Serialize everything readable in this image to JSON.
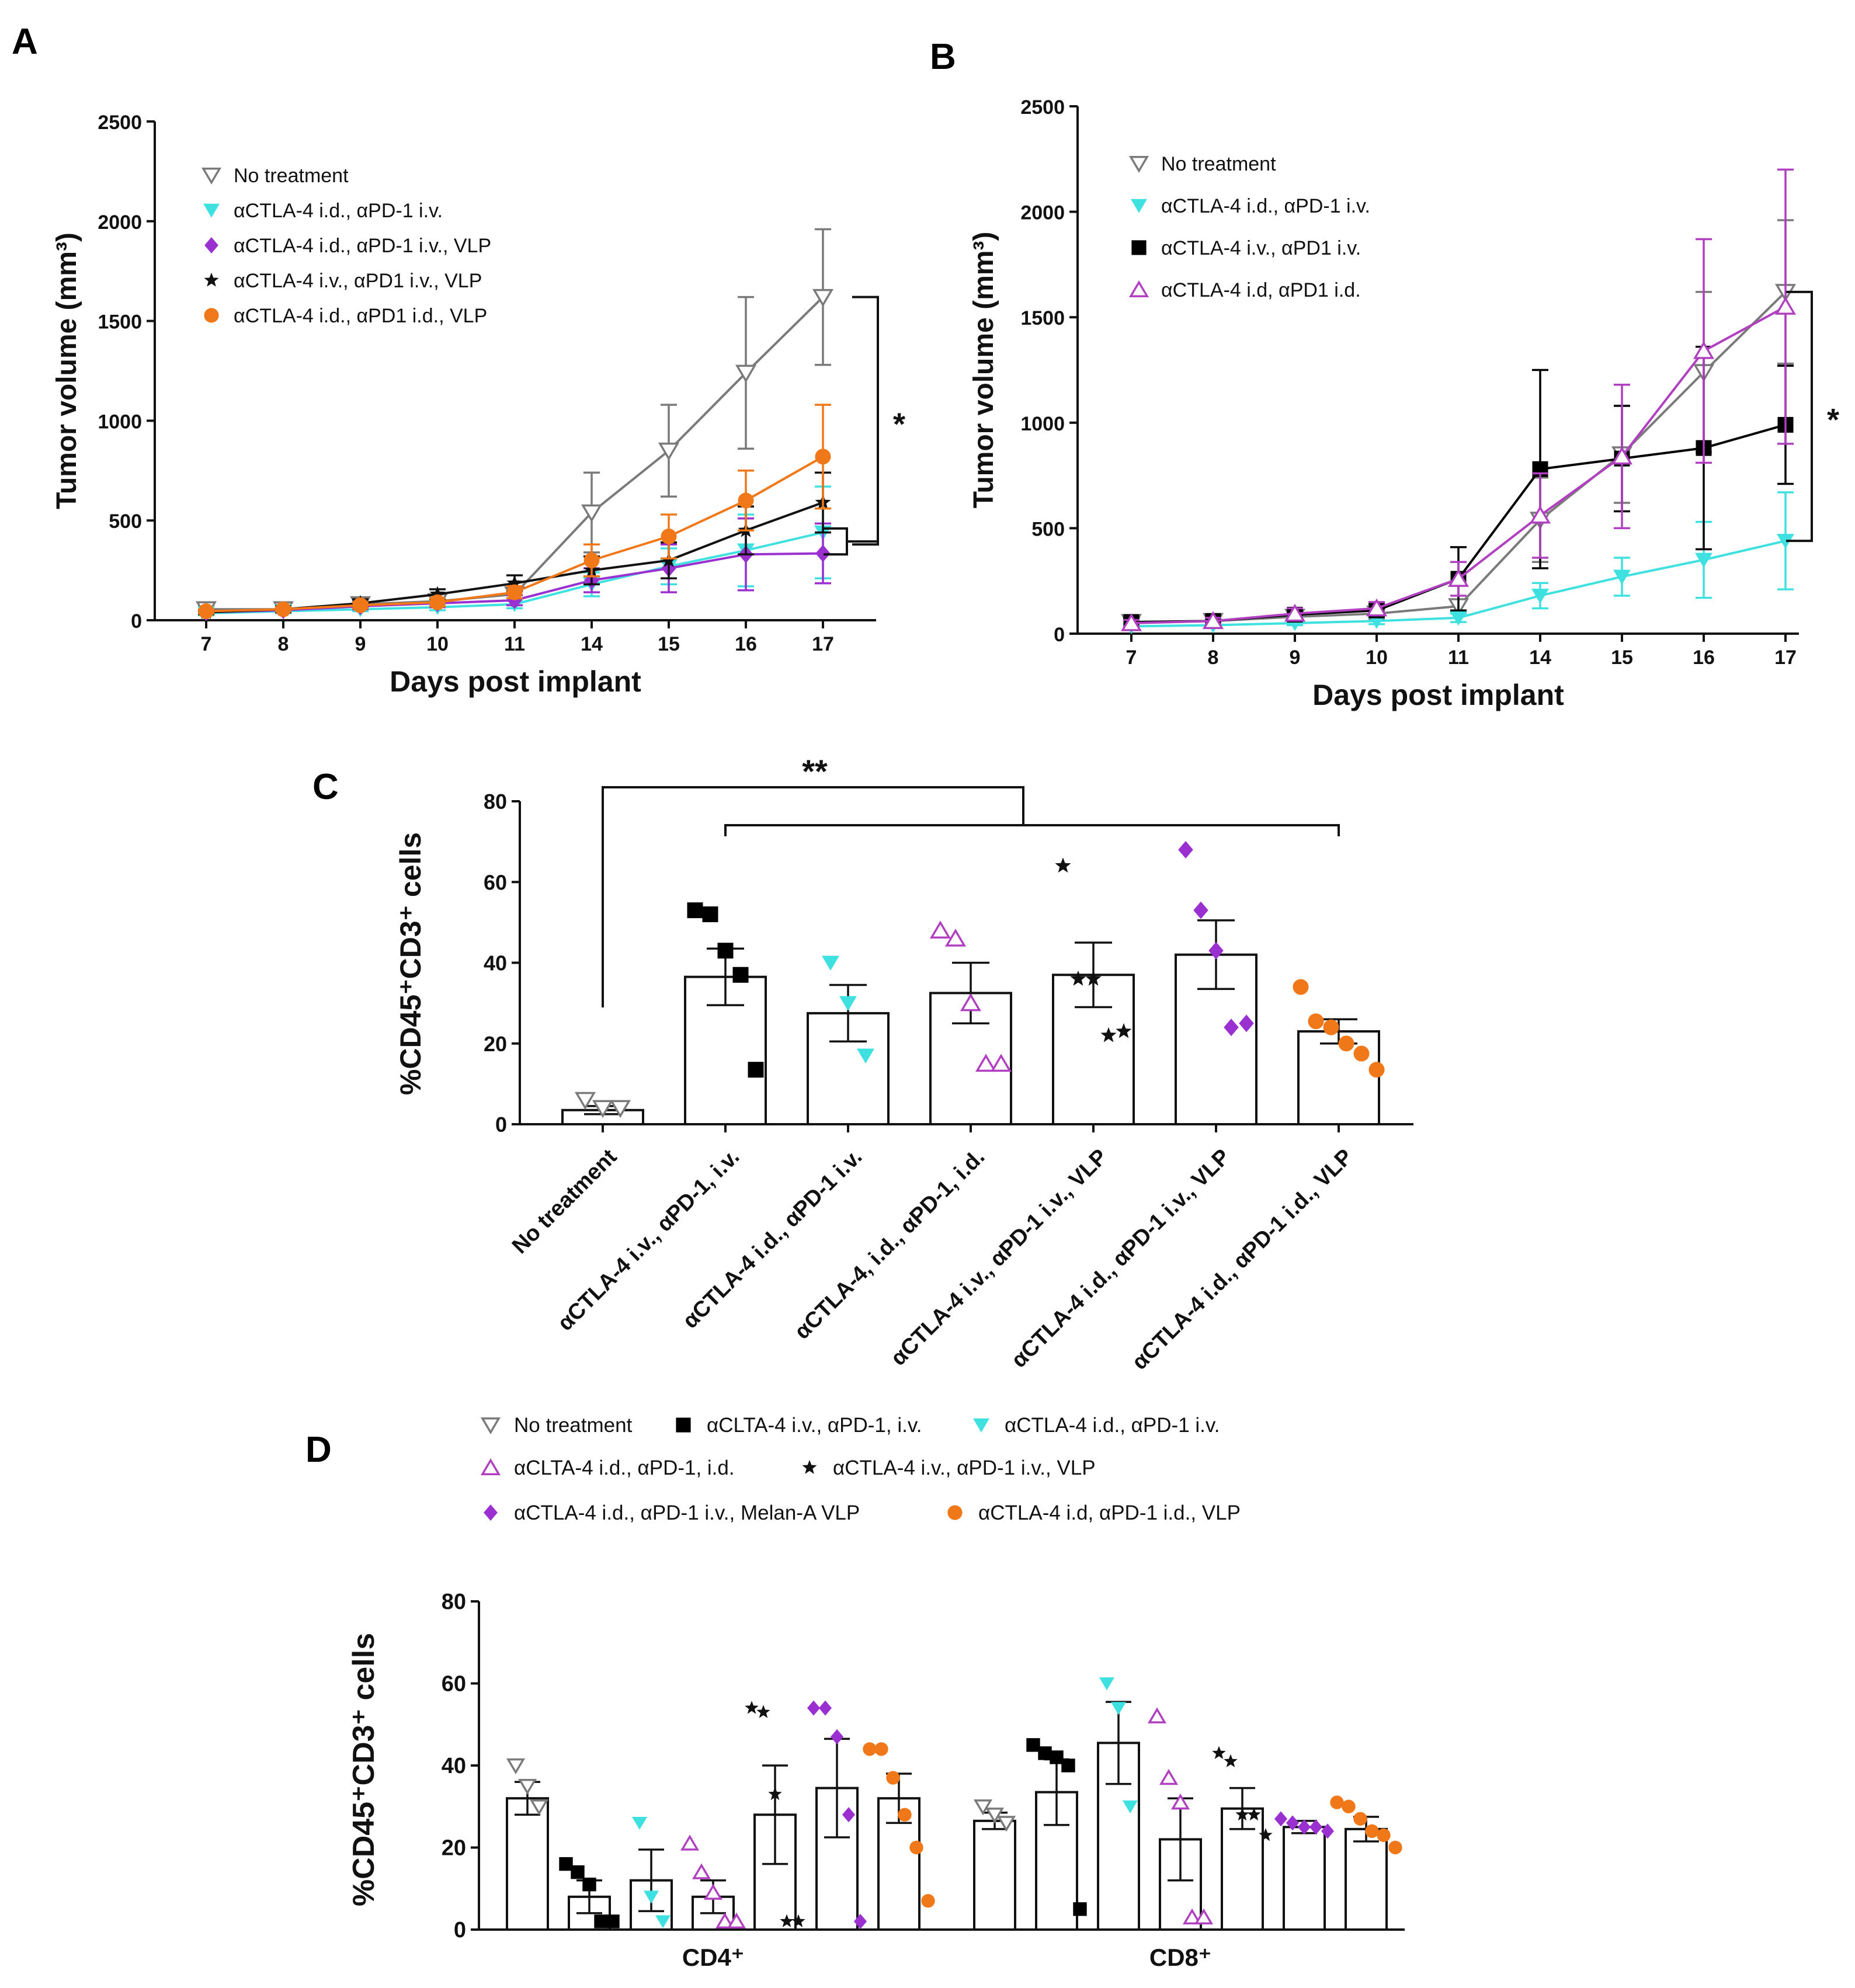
{
  "colors": {
    "no_treatment": "#7a7a7a",
    "ctla4_id_pd1_iv": "#3fe0e0",
    "ctla4_id_pd1_iv_vlp": "#9b30d0",
    "ctla4_iv_pd1_iv_vlp": "#111111",
    "ctla4_id_pd1_id_vlp": "#f07818",
    "ctla4_iv_pd1_iv": "#000000",
    "ctla4_id_pd1_id": "#b040c0",
    "axis": "#111111"
  },
  "chart_data": [
    {
      "panel": "A",
      "type": "line",
      "title": "",
      "xlabel": "Days post implant",
      "ylabel": "Tumor volume (mm³)",
      "ylim": [
        0,
        2500
      ],
      "yticks": [
        "0",
        "500",
        "1000",
        "1500",
        "2000",
        "2500"
      ],
      "categories": [
        "7",
        "8",
        "9",
        "10",
        "11",
        "14",
        "15",
        "16",
        "17"
      ],
      "legend_position": "top-left",
      "series": [
        {
          "name": "No treatment",
          "marker": "triangle-down-open",
          "color_key": "no_treatment",
          "values": [
            55,
            55,
            80,
            95,
            130,
            540,
            850,
            1240,
            1620
          ],
          "errors": [
            20,
            15,
            20,
            25,
            30,
            200,
            230,
            380,
            340
          ]
        },
        {
          "name": "αCTLA-4 i.d., αPD-1 i.v.",
          "marker": "triangle-down",
          "color_key": "ctla4_id_pd1_iv",
          "values": [
            35,
            45,
            55,
            65,
            80,
            180,
            270,
            350,
            440
          ],
          "errors": [
            10,
            10,
            10,
            15,
            20,
            60,
            90,
            180,
            230
          ]
        },
        {
          "name": "αCTLA-4 i.d., αPD-1 i.v., VLP",
          "marker": "diamond",
          "color_key": "ctla4_id_pd1_iv_vlp",
          "values": [
            40,
            50,
            70,
            85,
            100,
            200,
            260,
            330,
            335
          ],
          "errors": [
            10,
            10,
            15,
            20,
            25,
            60,
            120,
            180,
            150
          ]
        },
        {
          "name": "αCTLA-4 i.v., αPD1 i.v., VLP",
          "marker": "star",
          "color_key": "ctla4_iv_pd1_iv_vlp",
          "values": [
            40,
            55,
            85,
            130,
            185,
            250,
            300,
            450,
            590
          ],
          "errors": [
            10,
            15,
            20,
            25,
            40,
            70,
            90,
            120,
            150
          ]
        },
        {
          "name": "αCTLA-4 i.d., αPD1 i.d., VLP",
          "marker": "circle",
          "color_key": "ctla4_id_pd1_id_vlp",
          "values": [
            45,
            55,
            75,
            90,
            140,
            300,
            420,
            600,
            820
          ],
          "errors": [
            10,
            10,
            15,
            20,
            30,
            80,
            110,
            150,
            260
          ]
        }
      ],
      "annotations": [
        "*"
      ]
    },
    {
      "panel": "B",
      "type": "line",
      "title": "",
      "xlabel": "Days post implant",
      "ylabel": "Tumor volume (mm³)",
      "ylim": [
        0,
        2500
      ],
      "yticks": [
        "0",
        "500",
        "1000",
        "1500",
        "2000",
        "2500"
      ],
      "categories": [
        "7",
        "8",
        "9",
        "10",
        "11",
        "14",
        "15",
        "16",
        "17"
      ],
      "legend_position": "top-left",
      "series": [
        {
          "name": "No treatment",
          "marker": "triangle-down-open",
          "color_key": "no_treatment",
          "values": [
            55,
            60,
            80,
            95,
            130,
            540,
            850,
            1240,
            1620
          ],
          "errors": [
            20,
            15,
            20,
            25,
            30,
            200,
            230,
            380,
            340
          ]
        },
        {
          "name": "αCTLA-4 i.d., αPD-1 i.v.",
          "marker": "triangle-down",
          "color_key": "ctla4_id_pd1_iv",
          "values": [
            35,
            40,
            50,
            60,
            75,
            180,
            270,
            350,
            440
          ],
          "errors": [
            10,
            10,
            10,
            15,
            20,
            60,
            90,
            180,
            230
          ]
        },
        {
          "name": "αCTLA-4 i.v., αPD1 i.v.",
          "marker": "square",
          "color_key": "ctla4_iv_pd1_iv",
          "values": [
            55,
            60,
            90,
            110,
            260,
            780,
            830,
            880,
            990
          ],
          "errors": [
            20,
            15,
            25,
            30,
            150,
            470,
            250,
            480,
            280
          ]
        },
        {
          "name": "αCTLA-4 i.d, αPD1 i.d.",
          "marker": "triangle-up-open",
          "color_key": "ctla4_id_pd1_id",
          "values": [
            50,
            60,
            95,
            120,
            260,
            560,
            840,
            1340,
            1550
          ],
          "errors": [
            15,
            15,
            25,
            30,
            80,
            200,
            340,
            530,
            650
          ]
        }
      ],
      "annotations": [
        "*"
      ]
    },
    {
      "panel": "C",
      "type": "bar",
      "title": "",
      "xlabel": "",
      "ylabel": "%CD45⁺CD3⁺ cells",
      "ylim": [
        0,
        80
      ],
      "yticks": [
        "0",
        "20",
        "40",
        "60",
        "80"
      ],
      "categories": [
        "No treatment",
        "αCTLA-4 i.v., αPD-1, i.v.",
        "αCTLA-4 i.d., αPD-1 i.v.",
        "αCTLA-4, i.d., αPD-1, i.d.",
        "αCTLA-4 i.v., αPD-1 i.v., VLP",
        "αCTLA-4 i.d., αPD-1 i.v., VLP",
        "αCTLA-4 i.d., αPD-1 i.d., VLP"
      ],
      "values": [
        3.5,
        36.5,
        27.5,
        32.5,
        37,
        42,
        23
      ],
      "errors": [
        1,
        7,
        7,
        7.5,
        8,
        8.5,
        3
      ],
      "points": [
        [
          6,
          4,
          4
        ],
        [
          53,
          52,
          43,
          37,
          13.5
        ],
        [
          40,
          30,
          17
        ],
        [
          48,
          46,
          30,
          15,
          15
        ],
        [
          64,
          36,
          36,
          22,
          23
        ],
        [
          68,
          53,
          43,
          24,
          25
        ],
        [
          34,
          25.5,
          24,
          20,
          17.5,
          13.5
        ]
      ],
      "markers": [
        "triangle-down-open",
        "square",
        "triangle-down",
        "triangle-up-open",
        "star",
        "diamond",
        "circle"
      ],
      "color_keys": [
        "no_treatment",
        "ctla4_iv_pd1_iv",
        "ctla4_id_pd1_iv",
        "ctla4_id_pd1_id",
        "ctla4_iv_pd1_iv_vlp",
        "ctla4_id_pd1_iv_vlp",
        "ctla4_id_pd1_id_vlp"
      ],
      "annotations": [
        "**"
      ]
    },
    {
      "panel": "D",
      "type": "bar",
      "title": "",
      "xlabel": "",
      "ylabel": "%CD45⁺CD3⁺ cells",
      "ylim": [
        0,
        80
      ],
      "yticks": [
        "0",
        "20",
        "40",
        "60",
        "80"
      ],
      "groups": [
        "CD4⁺",
        "CD8⁺"
      ],
      "legend_position": "top",
      "legend": [
        {
          "name": "No treatment",
          "marker": "triangle-down-open",
          "color_key": "no_treatment"
        },
        {
          "name": "αCLTA-4 i.v., αPD-1, i.v.",
          "marker": "square",
          "color_key": "ctla4_iv_pd1_iv"
        },
        {
          "name": "αCTLA-4 i.d., αPD-1 i.v.",
          "marker": "triangle-down",
          "color_key": "ctla4_id_pd1_iv"
        },
        {
          "name": "αCLTA-4 i.d., αPD-1, i.d.",
          "marker": "triangle-up-open",
          "color_key": "ctla4_id_pd1_id"
        },
        {
          "name": "αCTLA-4 i.v., αPD-1 i.v., VLP",
          "marker": "star",
          "color_key": "ctla4_iv_pd1_iv_vlp"
        },
        {
          "name": "αCTLA-4 i.d., αPD-1 i.v., Melan-A VLP",
          "marker": "diamond",
          "color_key": "ctla4_id_pd1_iv_vlp"
        },
        {
          "name": "αCTLA-4 i.d, αPD-1 i.d., VLP",
          "marker": "circle",
          "color_key": "ctla4_id_pd1_id_vlp"
        }
      ],
      "series": [
        {
          "group": "CD4⁺",
          "values": [
            32,
            8,
            12,
            8,
            28,
            34.5,
            32
          ],
          "errors": [
            4,
            4,
            7.5,
            4,
            12,
            12,
            6
          ],
          "points": [
            [
              40,
              35,
              30
            ],
            [
              16,
              14,
              11,
              2,
              2
            ],
            [
              26,
              8,
              2
            ],
            [
              21,
              14,
              9,
              2,
              2
            ],
            [
              54,
              53,
              33,
              2,
              2
            ],
            [
              54,
              54,
              47,
              28,
              2
            ],
            [
              44,
              44,
              37,
              28,
              20,
              7
            ]
          ]
        },
        {
          "group": "CD8⁺",
          "values": [
            26.5,
            33.5,
            45.5,
            22,
            29.5,
            25,
            24.5
          ],
          "errors": [
            2,
            8,
            10,
            10,
            5,
            1.5,
            3
          ],
          "points": [
            [
              30,
              28,
              26
            ],
            [
              45,
              43,
              42,
              40,
              5
            ],
            [
              60,
              54,
              30
            ],
            [
              52,
              37,
              31,
              3,
              3
            ],
            [
              43,
              41,
              28,
              28,
              23
            ],
            [
              27,
              26,
              25,
              25,
              24
            ],
            [
              31,
              30,
              27,
              24,
              23,
              20
            ]
          ]
        }
      ]
    }
  ],
  "panel_labels": {
    "a": "A",
    "b": "B",
    "c": "C",
    "d": "D"
  }
}
